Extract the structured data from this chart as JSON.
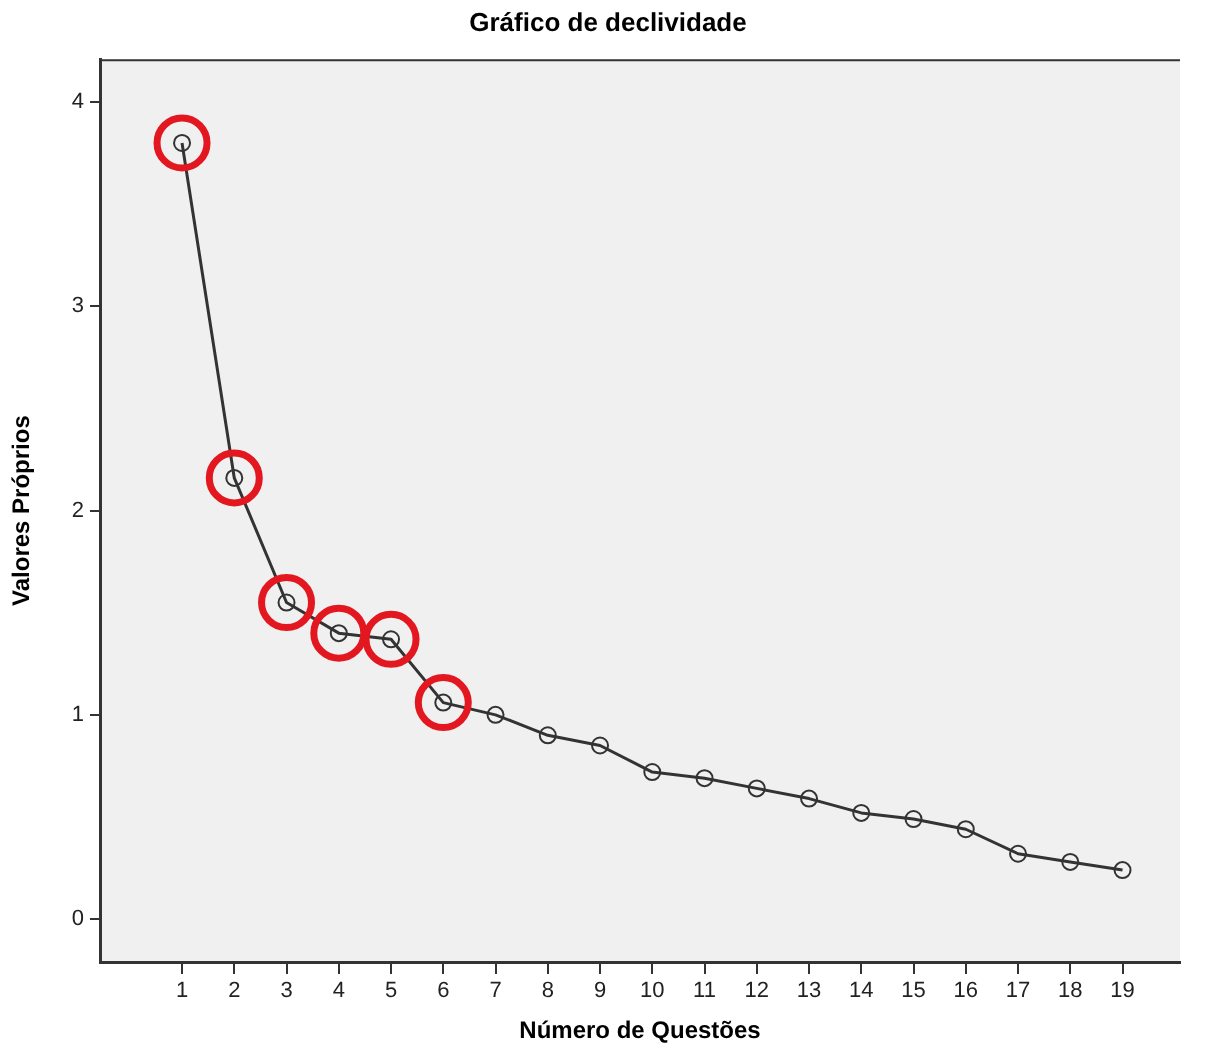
{
  "chart_data": {
    "type": "line",
    "title": "Gráfico de declividade",
    "xlabel": "Número de Questões",
    "ylabel": "Valores Próprios",
    "x": [
      1,
      2,
      3,
      4,
      5,
      6,
      7,
      8,
      9,
      10,
      11,
      12,
      13,
      14,
      15,
      16,
      17,
      18,
      19
    ],
    "xlim": [
      -0.57,
      20.1
    ],
    "xticks": [
      1,
      2,
      3,
      4,
      5,
      6,
      7,
      8,
      9,
      10,
      11,
      12,
      13,
      14,
      15,
      16,
      17,
      18,
      19
    ],
    "ylim": [
      -0.21,
      4.21
    ],
    "yticks": [
      0,
      1,
      2,
      3,
      4
    ],
    "marker": "circle",
    "series": [
      {
        "color": "#333333",
        "values": [
          3.8,
          2.16,
          1.55,
          1.4,
          1.37,
          1.06,
          1.0,
          0.9,
          0.85,
          0.72,
          0.69,
          0.64,
          0.59,
          0.52,
          0.49,
          0.44,
          0.32,
          0.28,
          0.24
        ]
      },
      {
        "type": "scatter",
        "color": "#e3171f",
        "values": [
          3.8,
          2.16,
          1.55,
          1.4,
          1.37,
          1.06,
          null,
          null,
          null,
          null,
          null,
          null,
          null,
          null,
          null,
          null,
          null,
          null,
          null
        ]
      }
    ]
  }
}
